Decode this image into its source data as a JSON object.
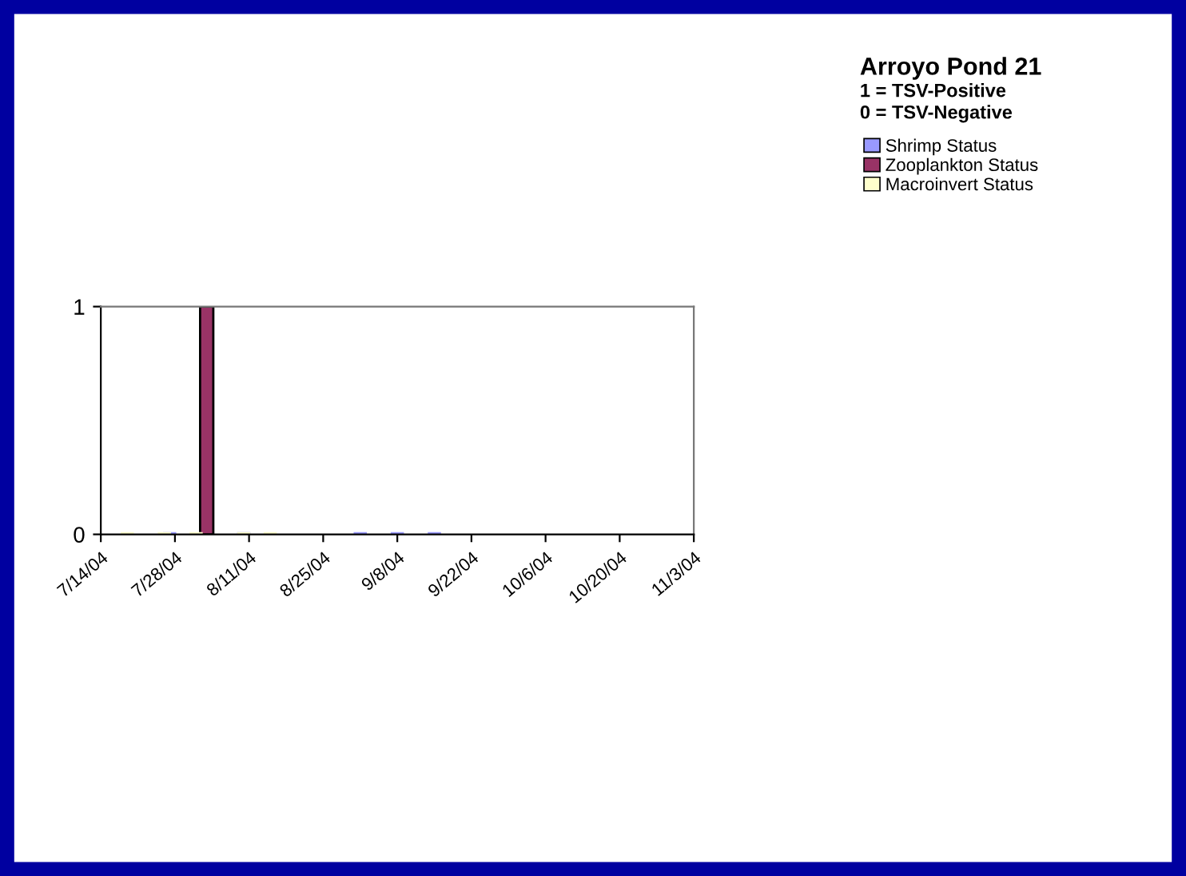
{
  "chart_data": {
    "type": "bar",
    "title": "Arroyo Pond 21",
    "subtitle": "1 = TSV-Positive\n0 = TSV-Negative",
    "series": [
      {
        "name": "Shrimp Status",
        "color": "#9999ff",
        "x": [
          "2004-07-27",
          "2004-08-03",
          "2004-08-10",
          "2004-09-01",
          "2004-09-08",
          "2004-09-15"
        ],
        "values": [
          0,
          0,
          0,
          0,
          0,
          0
        ]
      },
      {
        "name": "Zooplankton Status",
        "color": "#993366",
        "x": [
          "2004-08-03"
        ],
        "values": [
          1
        ]
      },
      {
        "name": "Macroinvert Status",
        "color": "#ffffcc",
        "x": [
          "2004-07-19",
          "2004-07-26",
          "2004-08-01",
          "2004-08-10",
          "2004-08-15"
        ],
        "values": [
          0,
          0,
          0,
          0,
          0
        ]
      }
    ],
    "xlim": [
      "2004-07-14",
      "2004-11-03"
    ],
    "xticks": [
      {
        "value": "2004-07-14",
        "label": "7/14/04"
      },
      {
        "value": "2004-07-28",
        "label": "7/28/04"
      },
      {
        "value": "2004-08-11",
        "label": "8/11/04"
      },
      {
        "value": "2004-08-25",
        "label": "8/25/04"
      },
      {
        "value": "2004-09-08",
        "label": "9/8/04"
      },
      {
        "value": "2004-09-22",
        "label": "9/22/04"
      },
      {
        "value": "2004-10-06",
        "label": "10/6/04"
      },
      {
        "value": "2004-10-20",
        "label": "10/20/04"
      },
      {
        "value": "2004-11-03",
        "label": "11/3/04"
      }
    ],
    "ylim": [
      0,
      1
    ],
    "yticks": [
      0,
      1
    ],
    "grid": false,
    "legend": "top right"
  }
}
